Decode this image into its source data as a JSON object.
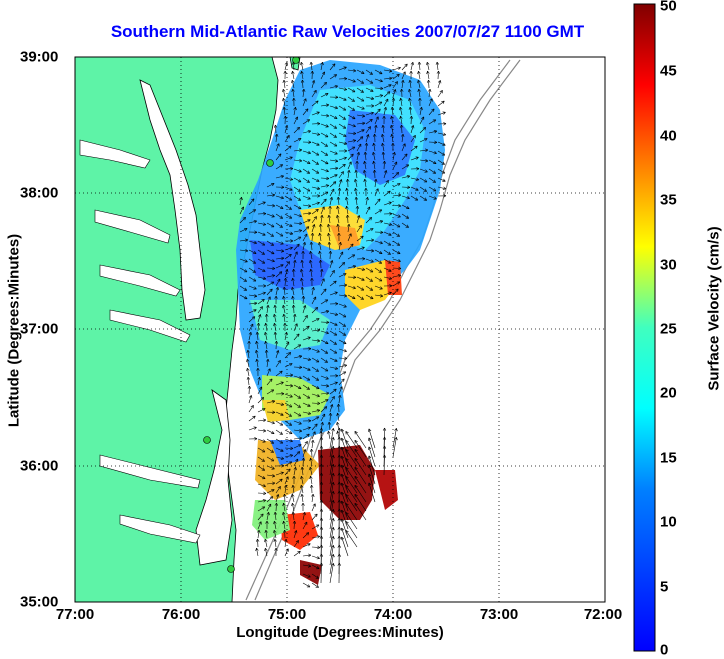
{
  "title": "Southern Mid-Atlantic Raw Velocities 2007/07/27 1100 GMT",
  "xlabel": "Longitude (Degrees:Minutes)",
  "ylabel": "Latitude (Degrees:Minutes)",
  "colorbar_label": "Surface Velocity (cm/s)",
  "colors": {
    "land": "#5ef3a7",
    "title": "#0000ff",
    "vector": "#000000",
    "grid": "#000000",
    "bathymetry": "#888888",
    "station": "#2ecc40"
  },
  "chart_data": {
    "type": "heatmap",
    "title": "Southern Mid-Atlantic Raw Velocities 2007/07/27 1100 GMT",
    "xlabel": "Longitude (Degrees:Minutes)",
    "ylabel": "Latitude (Degrees:Minutes)",
    "x_ticks": [
      "77:00",
      "76:00",
      "75:00",
      "74:00",
      "73:00",
      "72:00"
    ],
    "y_ticks": [
      "39:00",
      "38:00",
      "37:00",
      "36:00",
      "35:00"
    ],
    "colorbar": {
      "label": "Surface Velocity (cm/s)",
      "ticks": [
        "50",
        "45",
        "40",
        "35",
        "30",
        "25",
        "20",
        "15",
        "10",
        "5",
        "0"
      ],
      "range": [
        0,
        50
      ],
      "colormap": "jet"
    },
    "grid": true,
    "x_range": [
      -77,
      -72
    ],
    "y_range": [
      35,
      39
    ]
  }
}
